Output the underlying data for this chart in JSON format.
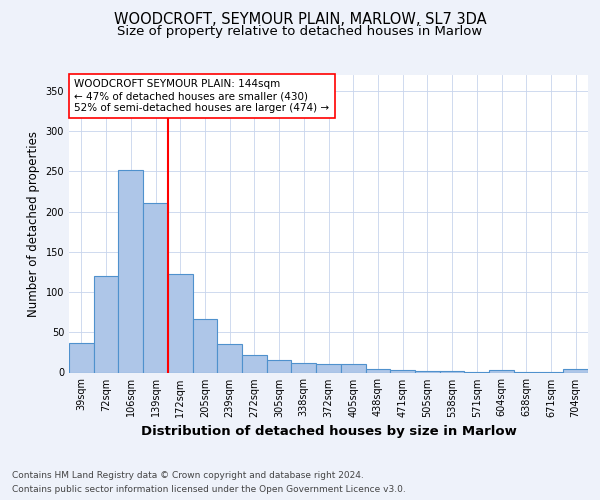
{
  "title": "WOODCROFT, SEYMOUR PLAIN, MARLOW, SL7 3DA",
  "subtitle": "Size of property relative to detached houses in Marlow",
  "xlabel": "Distribution of detached houses by size in Marlow",
  "ylabel": "Number of detached properties",
  "categories": [
    "39sqm",
    "72sqm",
    "106sqm",
    "139sqm",
    "172sqm",
    "205sqm",
    "239sqm",
    "272sqm",
    "305sqm",
    "338sqm",
    "372sqm",
    "405sqm",
    "438sqm",
    "471sqm",
    "505sqm",
    "538sqm",
    "571sqm",
    "604sqm",
    "638sqm",
    "671sqm",
    "704sqm"
  ],
  "values": [
    37,
    120,
    252,
    211,
    122,
    67,
    35,
    22,
    16,
    12,
    11,
    11,
    4,
    3,
    2,
    2,
    1,
    3,
    1,
    1,
    4
  ],
  "bar_color": "#aec6e8",
  "bar_edgecolor": "#4f91cd",
  "bar_linewidth": 0.8,
  "vline_index": 3,
  "vline_color": "red",
  "vline_linewidth": 1.5,
  "ylim": [
    0,
    370
  ],
  "yticks": [
    0,
    50,
    100,
    150,
    200,
    250,
    300,
    350
  ],
  "annotation_title": "WOODCROFT SEYMOUR PLAIN: 144sqm",
  "annotation_line1": "← 47% of detached houses are smaller (430)",
  "annotation_line2": "52% of semi-detached houses are larger (474) →",
  "annotation_box_color": "white",
  "annotation_box_edgecolor": "red",
  "footnote1": "Contains HM Land Registry data © Crown copyright and database right 2024.",
  "footnote2": "Contains public sector information licensed under the Open Government Licence v3.0.",
  "bg_color": "#eef2fa",
  "plot_bg_color": "white",
  "grid_color": "#c8d4ec",
  "title_fontsize": 10.5,
  "subtitle_fontsize": 9.5,
  "xlabel_fontsize": 9.5,
  "ylabel_fontsize": 8.5,
  "tick_fontsize": 7,
  "footnote_fontsize": 6.5,
  "annotation_fontsize": 7.5
}
